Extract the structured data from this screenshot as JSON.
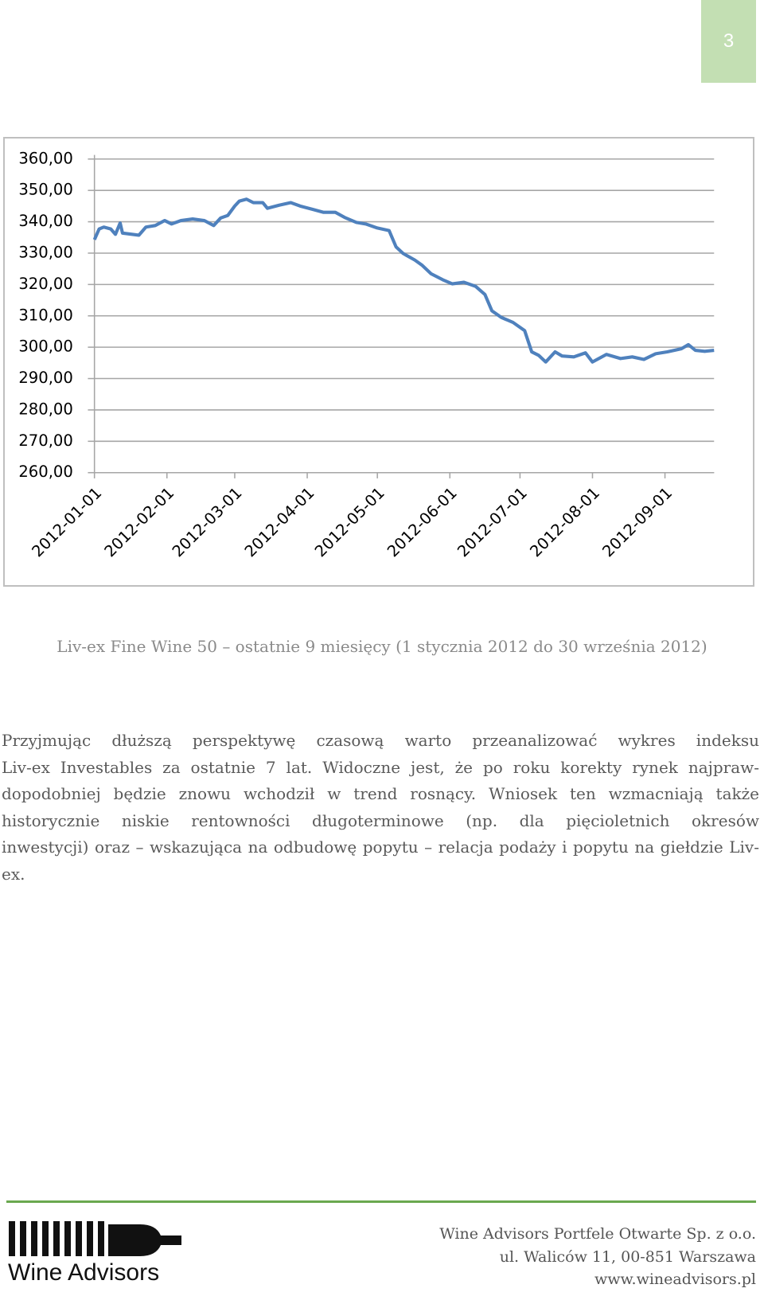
{
  "page_number": "3",
  "chart_data": {
    "type": "line",
    "x": [
      "2012-01-01",
      "2012-01-03",
      "2012-01-05",
      "2012-01-08",
      "2012-01-10",
      "2012-01-12",
      "2012-01-13",
      "2012-01-17",
      "2012-01-20",
      "2012-01-23",
      "2012-01-27",
      "2012-01-31",
      "2012-02-03",
      "2012-02-07",
      "2012-02-12",
      "2012-02-17",
      "2012-02-21",
      "2012-02-24",
      "2012-02-27",
      "2012-03-01",
      "2012-03-03",
      "2012-03-06",
      "2012-03-09",
      "2012-03-13",
      "2012-03-15",
      "2012-03-20",
      "2012-03-25",
      "2012-03-29",
      "2012-04-03",
      "2012-04-08",
      "2012-04-13",
      "2012-04-17",
      "2012-04-22",
      "2012-04-26",
      "2012-05-01",
      "2012-05-06",
      "2012-05-09",
      "2012-05-12",
      "2012-05-17",
      "2012-05-20",
      "2012-05-24",
      "2012-05-29",
      "2012-06-02",
      "2012-06-07",
      "2012-06-12",
      "2012-06-16",
      "2012-06-19",
      "2012-06-23",
      "2012-06-28",
      "2012-07-03",
      "2012-07-06",
      "2012-07-09",
      "2012-07-12",
      "2012-07-16",
      "2012-07-19",
      "2012-07-24",
      "2012-07-29",
      "2012-08-01",
      "2012-08-07",
      "2012-08-13",
      "2012-08-18",
      "2012-08-23",
      "2012-08-28",
      "2012-09-02",
      "2012-09-08",
      "2012-09-11",
      "2012-09-14",
      "2012-09-18",
      "2012-09-22"
    ],
    "series": [
      {
        "color": "#4f81bd",
        "values": [
          334.3,
          337.7,
          338.3,
          337.7,
          336,
          339.6,
          336.4,
          336,
          335.7,
          338.3,
          338.8,
          340.4,
          339.3,
          340.4,
          340.9,
          340.4,
          338.8,
          341.2,
          342,
          345,
          346.6,
          347.2,
          346.1,
          346.1,
          344.3,
          345.3,
          346.1,
          345,
          344,
          343,
          343,
          341.4,
          339.8,
          339.3,
          338,
          337.2,
          332,
          329.9,
          327.8,
          326.2,
          323.4,
          321.5,
          320.2,
          320.7,
          319.4,
          316.8,
          311.6,
          309.5,
          307.9,
          305.3,
          298.5,
          297.4,
          295.3,
          298.5,
          297.2,
          296.9,
          298.2,
          295.3,
          297.7,
          296.4,
          296.9,
          296.1,
          297.9,
          298.5,
          299.5,
          300.8,
          299,
          298.7,
          299
        ]
      }
    ],
    "xlim": [
      "2012-01-01",
      "2012-09-22"
    ],
    "xticks": [
      "2012-01-01",
      "2012-02-01",
      "2012-03-01",
      "2012-04-01",
      "2012-05-01",
      "2012-06-01",
      "2012-07-01",
      "2012-08-01",
      "2012-09-01"
    ],
    "ylim": [
      260,
      360
    ],
    "yticks": [
      {
        "value": 260,
        "label": "260,00"
      },
      {
        "value": 270,
        "label": "270,00"
      },
      {
        "value": 280,
        "label": "280,00"
      },
      {
        "value": 290,
        "label": "290,00"
      },
      {
        "value": 300,
        "label": "300,00"
      },
      {
        "value": 310,
        "label": "310,00"
      },
      {
        "value": 320,
        "label": "320,00"
      },
      {
        "value": 330,
        "label": "330,00"
      },
      {
        "value": 340,
        "label": "340,00"
      },
      {
        "value": 350,
        "label": "350,00"
      },
      {
        "value": 360,
        "label": "360,00"
      }
    ],
    "grid": true
  },
  "caption": "Liv-ex Fine Wine 50 – ostatnie 9 miesięcy (1 stycznia 2012 do 30 września 2012)",
  "paragraph": [
    "Przyjmując dłuższą perspektywę czasową warto przeanalizować wykres indeksu",
    "Liv-ex Investables za ostatnie 7 lat. Widoczne jest, że po roku korekty rynek najpraw-",
    "dopodobniej będzie znowu wchodził w trend rosnący. Wniosek ten wzmacniają także",
    "historycznie niskie rentowności długoterminowe (np. dla pięcioletnich okresów",
    "inwestycji) oraz – wskazująca na odbudowę popytu – relacja podaży i popytu na giełdzie Liv-ex."
  ],
  "footer": {
    "logo": "Wine Advisors",
    "address": [
      "Wine Advisors Portfele Otwarte Sp. z o.o.",
      "ul. Waliców 11, 00-851 Warszawa",
      "www.wineadvisors.pl"
    ]
  }
}
